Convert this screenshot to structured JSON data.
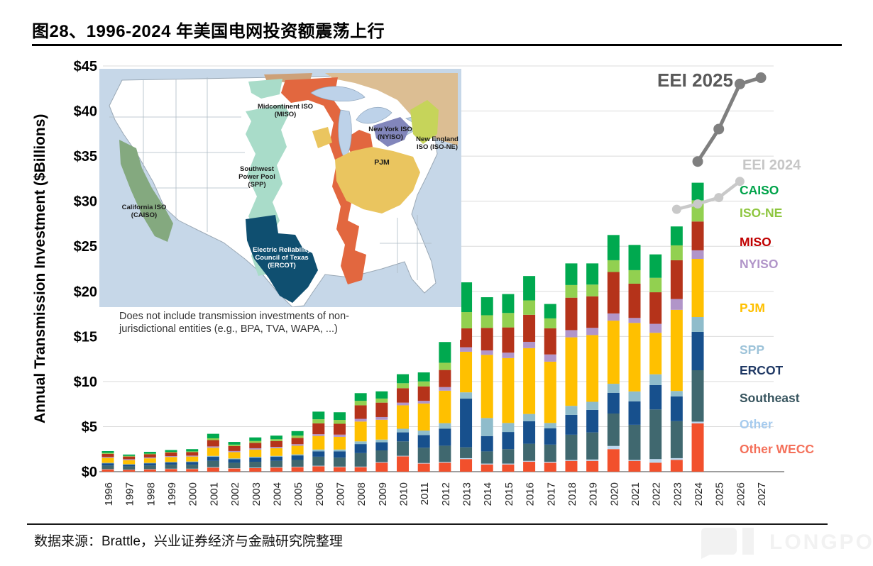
{
  "title": "图28、1996-2024 年美国电网投资额震荡上行",
  "source": "数据来源：Brattle，兴业证券经济与金融研究院整理",
  "watermark": "LONGPORT",
  "line_labels": {
    "eei2025": {
      "text": "EEI 2025",
      "color": "#595959"
    },
    "eei2024": {
      "text": "EEI 2024",
      "color": "#C6C6C6"
    }
  },
  "legend": {
    "items": [
      {
        "label": "CAISO",
        "color": "#00A34A"
      },
      {
        "label": "ISO-NE",
        "color": "#8EC63F"
      },
      {
        "label": "MISO",
        "color": "#C00000"
      },
      {
        "label": "NYISO",
        "color": "#B195C9"
      },
      {
        "label": "PJM",
        "color": "#FFC000"
      },
      {
        "label": "SPP",
        "color": "#9DC3D9"
      },
      {
        "label": "ERCOT",
        "color": "#1F3864"
      },
      {
        "label": "Southeast",
        "color": "#37545E"
      },
      {
        "label": "Other",
        "color": "#A6CBEE"
      },
      {
        "label": "Other WECC",
        "color": "#F4705A"
      }
    ]
  },
  "map": {
    "labels": {
      "miso": "Midcontinent ISO\n(MISO)",
      "spp": "Southwest\nPower Pool\n(SPP)",
      "ercot": "Electric Reliability\nCouncil of Texas\n(ERCOT)",
      "pjm": "PJM",
      "nyiso": "New York ISO\n(NYISO)",
      "isone": "New England\nISO (ISO-NE)",
      "caiso": "California ISO\n(CAISO)"
    },
    "caption": "Does not include transmission investments of non-\njurisdictional entities (e.g., BPA, TVA, WAPA, ...)"
  },
  "chart_data": {
    "type": "bar",
    "stacked": true,
    "title": "图28、1996-2024 年美国电网投资额震荡上行",
    "xlabel": "",
    "ylabel": "Annual Transmission Investment ($Billions)",
    "ylim": [
      0,
      45
    ],
    "ytick_step": 5,
    "ytick_labels": [
      "$0",
      "$5",
      "$10",
      "$15",
      "$20",
      "$25",
      "$30",
      "$35",
      "$40",
      "$45"
    ],
    "grid": true,
    "legend_position": "right",
    "categories": [
      1996,
      1997,
      1998,
      1999,
      2000,
      2001,
      2002,
      2003,
      2004,
      2005,
      2006,
      2007,
      2008,
      2009,
      2010,
      2011,
      2012,
      2013,
      2014,
      2015,
      2016,
      2017,
      2018,
      2019,
      2020,
      2021,
      2022,
      2023,
      2024,
      2025,
      2026,
      2027
    ],
    "bar_years": [
      1996,
      1997,
      1998,
      1999,
      2000,
      2001,
      2002,
      2003,
      2004,
      2005,
      2006,
      2007,
      2008,
      2009,
      2010,
      2011,
      2012,
      2013,
      2014,
      2015,
      2016,
      2017,
      2018,
      2019,
      2020,
      2021,
      2022,
      2023,
      2024
    ],
    "series": [
      {
        "name": "Other WECC",
        "color": "#F2502C",
        "values": [
          0.25,
          0.2,
          0.25,
          0.3,
          0.3,
          0.45,
          0.35,
          0.4,
          0.45,
          0.5,
          0.6,
          0.5,
          0.5,
          1.0,
          1.7,
          0.9,
          1.0,
          1.4,
          0.8,
          0.8,
          1.1,
          1.0,
          1.2,
          1.2,
          2.5,
          1.2,
          1.0,
          1.3,
          5.35
        ]
      },
      {
        "name": "Other",
        "color": "#BDD7EE",
        "values": [
          0.03,
          0.03,
          0.03,
          0.03,
          0.03,
          0.05,
          0.04,
          0.05,
          0.05,
          0.05,
          0.06,
          0.06,
          0.06,
          0.06,
          0.06,
          0.06,
          0.08,
          0.1,
          0.1,
          0.1,
          0.1,
          0.1,
          0.1,
          0.15,
          0.35,
          0.1,
          0.4,
          0.2,
          0.2
        ]
      },
      {
        "name": "Southeast",
        "color": "#40686F",
        "values": [
          0.4,
          0.35,
          0.4,
          0.45,
          0.45,
          0.7,
          0.6,
          0.65,
          0.7,
          0.75,
          1.0,
          1.0,
          1.5,
          1.3,
          1.6,
          1.7,
          1.8,
          1.2,
          1.35,
          1.6,
          1.9,
          1.9,
          2.8,
          3.0,
          3.6,
          3.9,
          5.5,
          4.1,
          5.7
        ]
      },
      {
        "name": "ERCOT",
        "color": "#17508D",
        "values": [
          0.25,
          0.2,
          0.25,
          0.25,
          0.3,
          0.45,
          0.4,
          0.45,
          0.45,
          0.5,
          0.6,
          0.7,
          1.0,
          0.9,
          1.0,
          1.4,
          1.9,
          5.4,
          1.7,
          1.9,
          2.5,
          1.8,
          2.2,
          2.5,
          2.3,
          2.6,
          2.7,
          2.75,
          4.25
        ]
      },
      {
        "name": "SPP",
        "color": "#8FBCCB",
        "values": [
          0.05,
          0.05,
          0.05,
          0.05,
          0.05,
          0.1,
          0.08,
          0.1,
          0.1,
          0.12,
          0.2,
          0.2,
          0.3,
          0.3,
          0.4,
          0.5,
          0.6,
          0.7,
          2.0,
          1.0,
          0.8,
          0.6,
          1.0,
          0.9,
          1.0,
          1.1,
          1.2,
          0.6,
          1.65
        ]
      },
      {
        "name": "PJM",
        "color": "#FFC000",
        "values": [
          0.55,
          0.45,
          0.5,
          0.55,
          0.55,
          0.9,
          0.7,
          0.8,
          0.85,
          0.95,
          1.5,
          1.4,
          2.2,
          2.2,
          2.6,
          3.0,
          3.6,
          4.5,
          7.0,
          7.2,
          7.3,
          6.8,
          7.6,
          7.4,
          7.0,
          7.6,
          4.6,
          9.0,
          6.45
        ]
      },
      {
        "name": "NYISO",
        "color": "#B195C9",
        "values": [
          0.1,
          0.1,
          0.1,
          0.1,
          0.1,
          0.15,
          0.12,
          0.15,
          0.15,
          0.18,
          0.2,
          0.25,
          0.3,
          0.3,
          0.3,
          0.3,
          0.4,
          0.5,
          0.5,
          0.6,
          0.7,
          0.8,
          0.8,
          0.8,
          0.8,
          0.55,
          1.0,
          1.2,
          0.95
        ]
      },
      {
        "name": "MISO",
        "color": "#B5331A",
        "values": [
          0.35,
          0.3,
          0.35,
          0.4,
          0.4,
          0.7,
          0.55,
          0.6,
          0.65,
          0.7,
          1.2,
          1.2,
          1.5,
          1.6,
          1.6,
          1.6,
          1.9,
          2.1,
          2.5,
          2.8,
          3.0,
          2.9,
          3.6,
          3.5,
          4.6,
          3.8,
          3.5,
          4.3,
          3.2
        ]
      },
      {
        "name": "ISO-NE",
        "color": "#92D050",
        "values": [
          0.1,
          0.07,
          0.07,
          0.07,
          0.07,
          0.2,
          0.16,
          0.2,
          0.2,
          0.25,
          0.45,
          0.43,
          0.5,
          0.45,
          0.55,
          0.55,
          0.8,
          1.8,
          1.4,
          1.6,
          1.6,
          1.1,
          1.4,
          1.3,
          1.3,
          1.5,
          1.6,
          1.65,
          2.35
        ]
      },
      {
        "name": "CAISO",
        "color": "#00A94F",
        "values": [
          0.2,
          0.15,
          0.2,
          0.2,
          0.25,
          0.5,
          0.3,
          0.4,
          0.4,
          0.5,
          0.85,
          0.85,
          0.85,
          0.8,
          1.0,
          1.0,
          2.3,
          3.3,
          2.0,
          2.1,
          2.7,
          1.6,
          2.4,
          2.35,
          2.8,
          2.8,
          2.6,
          2.1,
          1.95
        ]
      }
    ],
    "lines": [
      {
        "name": "EEI 2024",
        "color": "#C9C9C9",
        "x": [
          2023,
          2024,
          2025,
          2026
        ],
        "y": [
          29.1,
          29.7,
          30.4,
          32.2
        ]
      },
      {
        "name": "EEI 2025",
        "color": "#7F7F7F",
        "x": [
          2024,
          2025,
          2026,
          2027
        ],
        "y": [
          34.4,
          38.0,
          43.0,
          43.7
        ]
      }
    ]
  }
}
